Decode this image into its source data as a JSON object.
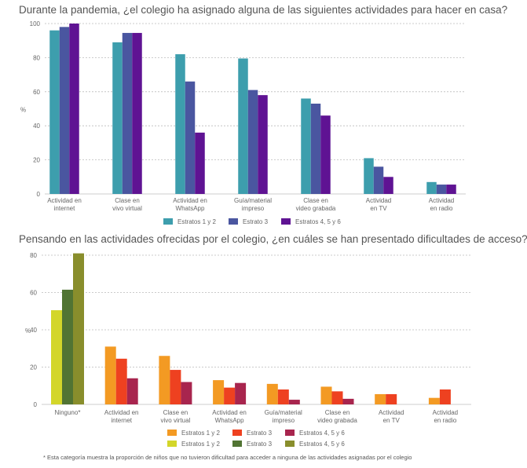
{
  "chart_data": [
    {
      "type": "bar",
      "title": "Durante la pandemia, ¿el colegio ha asignado alguna de las siguientes actividades para hacer en casa?",
      "ylabel": "%",
      "ylim": [
        0,
        100
      ],
      "yticks": [
        0,
        20,
        40,
        60,
        80,
        100
      ],
      "grid": true,
      "legend_placement": "bottom",
      "categories": [
        [
          "Actividad en",
          "internet"
        ],
        [
          "Clase en",
          "vivo virtual"
        ],
        [
          "Actividad en",
          "WhatsApp"
        ],
        [
          "Guía/material",
          "impreso"
        ],
        [
          "Clase en",
          "video grabada"
        ],
        [
          "Actividad",
          "en TV"
        ],
        [
          "Actividad",
          "en radio"
        ]
      ],
      "series": [
        {
          "name": "Estratos 1 y 2",
          "color": "#3d9ead",
          "values": [
            96,
            89,
            82,
            79.5,
            56,
            21,
            7
          ]
        },
        {
          "name": "Estrato 3",
          "color": "#4a56a0",
          "values": [
            98,
            94.5,
            66,
            61,
            53,
            16,
            5.5
          ]
        },
        {
          "name": "Estratos 4, 5 y 6",
          "color": "#5f1393",
          "values": [
            100,
            94.5,
            36,
            58,
            46,
            10,
            5.5
          ]
        }
      ]
    },
    {
      "type": "bar",
      "title": "Pensando en las actividades ofrecidas por el colegio, ¿en cuáles se han presentado dificultades de acceso?",
      "ylabel": "%",
      "ylim": [
        0,
        80
      ],
      "yticks": [
        0,
        20,
        40,
        60,
        80
      ],
      "grid": true,
      "legend_placement": "bottom",
      "categories": [
        [
          "Ninguno*"
        ],
        [
          "Actividad en",
          "internet"
        ],
        [
          "Clase en",
          "vivo virtual"
        ],
        [
          "Actividad en",
          "WhatsApp"
        ],
        [
          "Guía/material",
          "impreso"
        ],
        [
          "Clase en",
          "video grabada"
        ],
        [
          "Actividad",
          "en TV"
        ],
        [
          "Actividad",
          "en radio"
        ]
      ],
      "series": [
        {
          "name": "Estratos 1 y 2",
          "color": "#f39a23",
          "values": [
            null,
            31,
            26,
            13,
            11,
            9.5,
            5.5,
            3.5
          ]
        },
        {
          "name": "Estrato 3",
          "color": "#ee4120",
          "values": [
            null,
            24.5,
            18.5,
            9,
            8,
            7,
            5.5,
            8
          ]
        },
        {
          "name": "Estratos 4, 5 y 6",
          "color": "#a8254e",
          "values": [
            null,
            14,
            12,
            11.5,
            2.5,
            3,
            null,
            null
          ]
        },
        {
          "name": "Estratos 1 y 2",
          "color": "#d3d62a",
          "values": [
            50.5,
            null,
            null,
            null,
            null,
            null,
            null,
            null
          ]
        },
        {
          "name": "Estrato 3",
          "color": "#517433",
          "values": [
            61.5,
            null,
            null,
            null,
            null,
            null,
            null,
            null
          ]
        },
        {
          "name": "Estratos 4, 5 y 6",
          "color": "#898e2c",
          "values": [
            81,
            null,
            null,
            null,
            null,
            null,
            null,
            null
          ]
        }
      ],
      "footnote": "* Esta categoría muestra la proporción de niños que no tuvieron dificultad para acceder a ninguna de las actividades asignadas por el colegio"
    }
  ]
}
